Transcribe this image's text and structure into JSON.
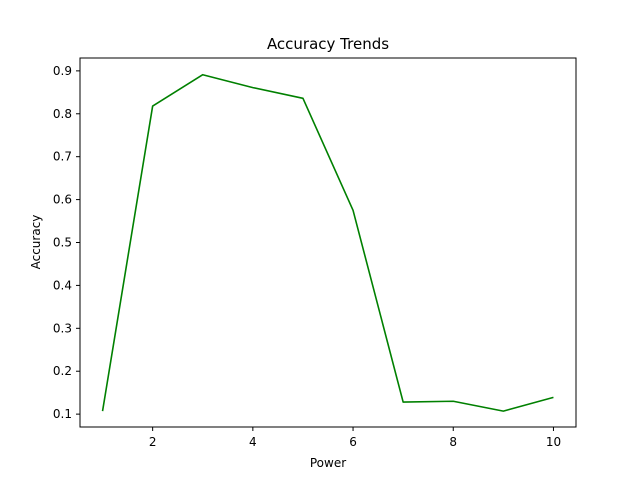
{
  "chart_data": {
    "type": "line",
    "title": "Accuracy Trends",
    "xlabel": "Power",
    "ylabel": "Accuracy",
    "xlim": [
      0.55,
      10.45
    ],
    "ylim": [
      0.07,
      0.93
    ],
    "xticks": [
      2,
      4,
      6,
      8,
      10
    ],
    "yticks": [
      0.1,
      0.2,
      0.3,
      0.4,
      0.5,
      0.6,
      0.7,
      0.8,
      0.9
    ],
    "grid": false,
    "line_color": "#008000",
    "series": [
      {
        "x": [
          1,
          2,
          3,
          4,
          5,
          6,
          7,
          8,
          9,
          10
        ],
        "values": [
          0.107,
          0.818,
          0.891,
          0.861,
          0.836,
          0.575,
          0.128,
          0.13,
          0.107,
          0.139
        ]
      }
    ]
  }
}
